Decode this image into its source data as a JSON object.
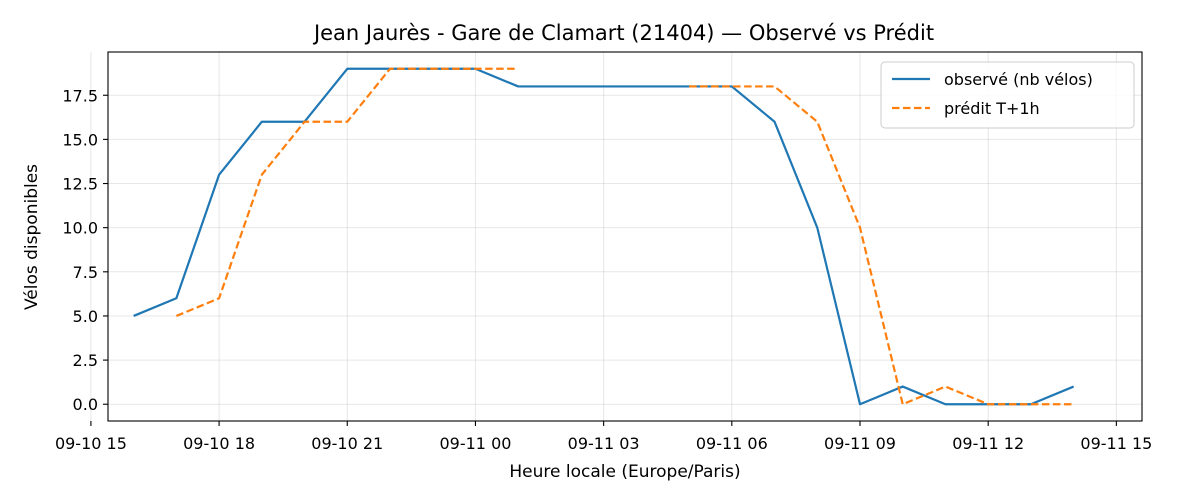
{
  "chart_data": {
    "type": "line",
    "title": "Jean Jaurès - Gare de Clamart (21404) — Observé vs Prédit",
    "xlabel": "Heure locale (Europe/Paris)",
    "ylabel": "Vélos disponibles",
    "xlim": [
      "2023-09-10 15:24",
      "2023-09-11 15:36"
    ],
    "ylim": [
      -0.95,
      19.95
    ],
    "grid": true,
    "legend_position": "top-right",
    "x_ticks": [
      {
        "x": "2023-09-10 15:00",
        "label": "09-10 15"
      },
      {
        "x": "2023-09-10 18:00",
        "label": "09-10 18"
      },
      {
        "x": "2023-09-10 21:00",
        "label": "09-10 21"
      },
      {
        "x": "2023-09-11 00:00",
        "label": "09-11 00"
      },
      {
        "x": "2023-09-11 03:00",
        "label": "09-11 03"
      },
      {
        "x": "2023-09-11 06:00",
        "label": "09-11 06"
      },
      {
        "x": "2023-09-11 09:00",
        "label": "09-11 09"
      },
      {
        "x": "2023-09-11 12:00",
        "label": "09-11 12"
      },
      {
        "x": "2023-09-11 15:00",
        "label": "09-11 15"
      }
    ],
    "y_ticks": [
      {
        "y": 0.0,
        "label": "0.0"
      },
      {
        "y": 2.5,
        "label": "2.5"
      },
      {
        "y": 5.0,
        "label": "5.0"
      },
      {
        "y": 7.5,
        "label": "7.5"
      },
      {
        "y": 10.0,
        "label": "10.0"
      },
      {
        "y": 12.5,
        "label": "12.5"
      },
      {
        "y": 15.0,
        "label": "15.0"
      },
      {
        "y": 17.5,
        "label": "17.5"
      }
    ],
    "series": [
      {
        "name": "observé (nb vélos)",
        "color": "#1f77b4",
        "style": "solid",
        "points": [
          {
            "x": "2023-09-10 16:00",
            "y": 5
          },
          {
            "x": "2023-09-10 17:00",
            "y": 6
          },
          {
            "x": "2023-09-10 18:00",
            "y": 13
          },
          {
            "x": "2023-09-10 19:00",
            "y": 16
          },
          {
            "x": "2023-09-10 20:00",
            "y": 16
          },
          {
            "x": "2023-09-10 21:00",
            "y": 19
          },
          {
            "x": "2023-09-10 22:00",
            "y": 19
          },
          {
            "x": "2023-09-10 23:00",
            "y": 19
          },
          {
            "x": "2023-09-11 00:00",
            "y": 19
          },
          {
            "x": "2023-09-11 01:00",
            "y": 18
          },
          {
            "x": "2023-09-11 02:00",
            "y": 18
          },
          {
            "x": "2023-09-11 03:00",
            "y": 18
          },
          {
            "x": "2023-09-11 04:00",
            "y": 18
          },
          {
            "x": "2023-09-11 05:00",
            "y": 18
          },
          {
            "x": "2023-09-11 06:00",
            "y": 18
          },
          {
            "x": "2023-09-11 07:00",
            "y": 16
          },
          {
            "x": "2023-09-11 08:00",
            "y": 10
          },
          {
            "x": "2023-09-11 09:00",
            "y": 0
          },
          {
            "x": "2023-09-11 10:00",
            "y": 1
          },
          {
            "x": "2023-09-11 11:00",
            "y": 0
          },
          {
            "x": "2023-09-11 12:00",
            "y": 0
          },
          {
            "x": "2023-09-11 13:00",
            "y": 0
          },
          {
            "x": "2023-09-11 14:00",
            "y": 1
          }
        ]
      },
      {
        "name": "prédit T+1h",
        "color": "#ff7f0e",
        "style": "dashed",
        "segments": [
          [
            {
              "x": "2023-09-10 17:00",
              "y": 5
            },
            {
              "x": "2023-09-10 18:00",
              "y": 6
            },
            {
              "x": "2023-09-10 19:00",
              "y": 13
            },
            {
              "x": "2023-09-10 20:00",
              "y": 16
            },
            {
              "x": "2023-09-10 21:00",
              "y": 16
            },
            {
              "x": "2023-09-10 22:00",
              "y": 19
            },
            {
              "x": "2023-09-10 23:00",
              "y": 19
            },
            {
              "x": "2023-09-11 00:00",
              "y": 19
            },
            {
              "x": "2023-09-11 01:00",
              "y": 19
            }
          ],
          [
            {
              "x": "2023-09-11 05:00",
              "y": 18
            },
            {
              "x": "2023-09-11 06:00",
              "y": 18
            },
            {
              "x": "2023-09-11 07:00",
              "y": 18
            },
            {
              "x": "2023-09-11 08:00",
              "y": 16
            },
            {
              "x": "2023-09-11 09:00",
              "y": 10
            },
            {
              "x": "2023-09-11 10:00",
              "y": 0
            },
            {
              "x": "2023-09-11 11:00",
              "y": 1
            },
            {
              "x": "2023-09-11 12:00",
              "y": 0
            },
            {
              "x": "2023-09-11 13:00",
              "y": 0
            },
            {
              "x": "2023-09-11 14:00",
              "y": 0
            }
          ]
        ]
      }
    ]
  }
}
